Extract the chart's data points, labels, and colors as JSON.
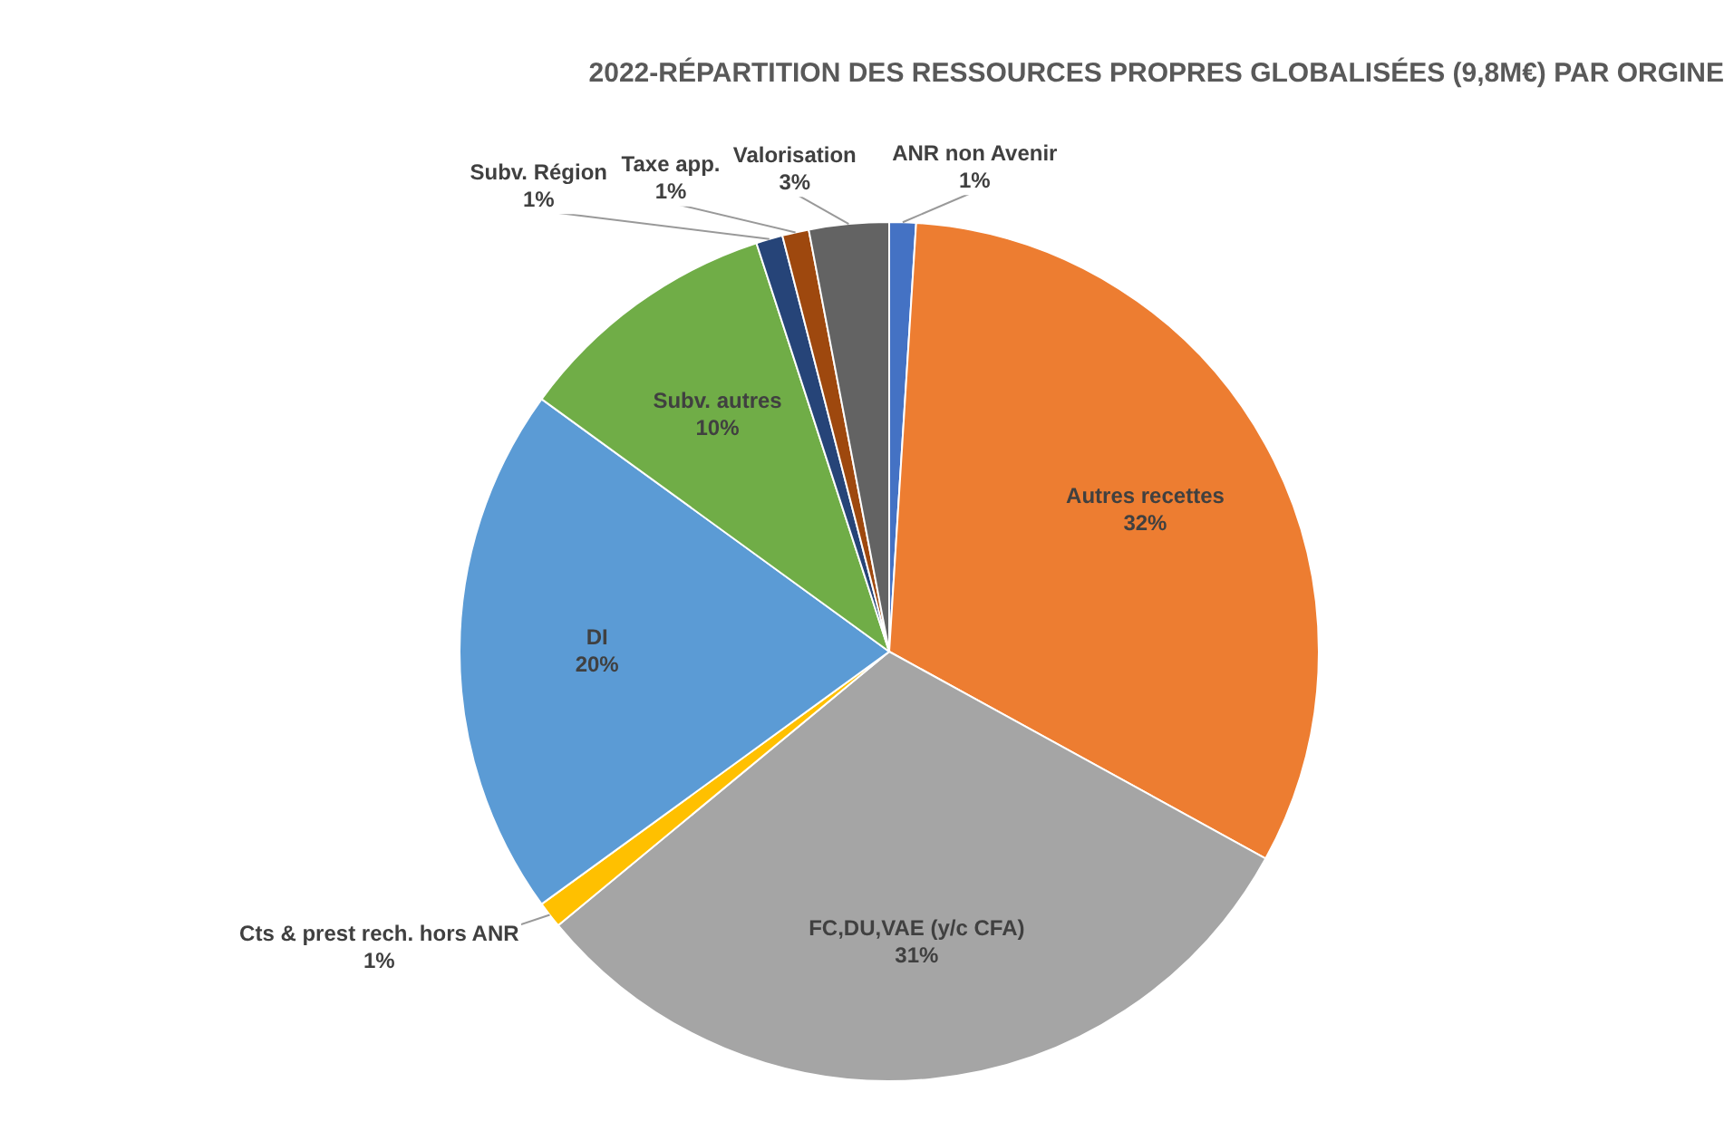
{
  "chart_data": {
    "type": "pie",
    "title": "2022-RÉPARTITION DES RESSOURCES PROPRES GLOBALISÉES (9,8M€) PAR ORGINE",
    "categories": [
      "ANR non Avenir",
      "Autres recettes",
      "FC,DU,VAE (y/c CFA)",
      "Cts & prest rech. hors ANR",
      "DI",
      "Subv. autres",
      "Subv. Région",
      "Taxe app.",
      "Valorisation"
    ],
    "values": [
      1,
      32,
      31,
      1,
      20,
      10,
      1,
      1,
      3
    ],
    "value_labels": [
      "1%",
      "32%",
      "31%",
      "1%",
      "20%",
      "10%",
      "1%",
      "1%",
      "3%"
    ],
    "colors": [
      "#4472c4",
      "#ed7d31",
      "#a5a5a5",
      "#ffc000",
      "#5b9bd5",
      "#70ad47",
      "#264478",
      "#9e480e",
      "#636363"
    ],
    "legend": false
  }
}
